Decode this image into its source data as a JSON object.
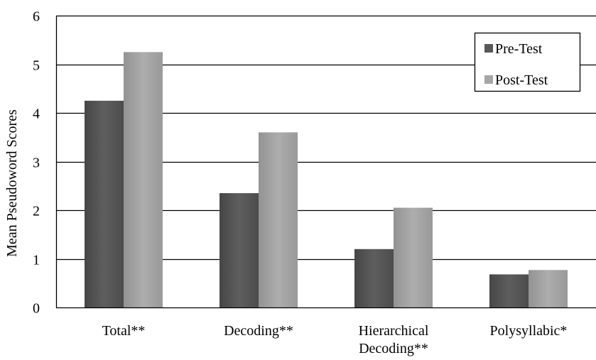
{
  "chart_data": {
    "type": "bar",
    "categories": [
      [
        "Total**"
      ],
      [
        "Decoding**"
      ],
      [
        "Hierarchical",
        "Decoding**"
      ],
      [
        "Polysyllabic*"
      ]
    ],
    "series": [
      {
        "name": "Pre-Test",
        "values": [
          4.25,
          2.35,
          1.2,
          0.68
        ],
        "color": "#585858"
      },
      {
        "name": "Post-Test",
        "values": [
          5.25,
          3.6,
          2.05,
          0.77
        ],
        "color": "#a6a6a6"
      }
    ],
    "title": "",
    "xlabel": "",
    "ylabel": "Mean Pseudoword Scores",
    "ylim": [
      0,
      6
    ],
    "yticks": [
      "0",
      "1",
      "2",
      "3",
      "4",
      "5",
      "6"
    ],
    "grid": true,
    "legend_position": "top-right"
  }
}
